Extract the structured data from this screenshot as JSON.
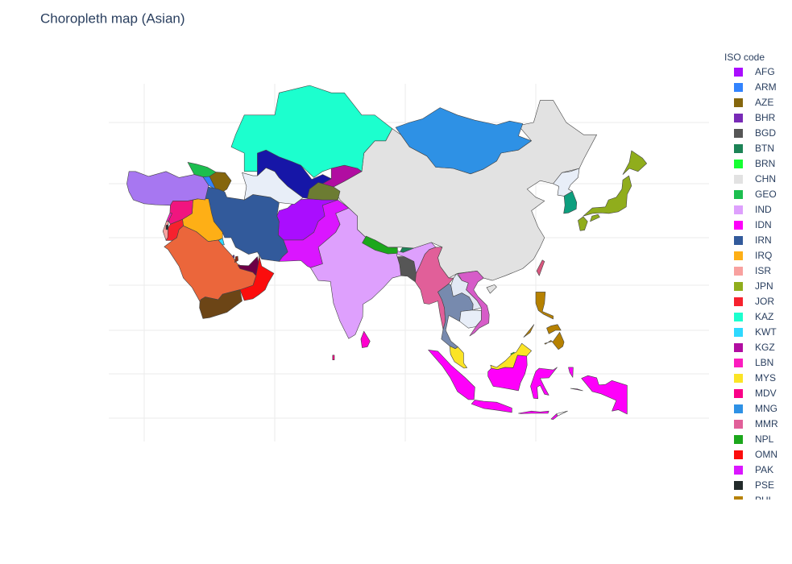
{
  "title": "Choropleth map (Asian)",
  "legend": {
    "title": "ISO code",
    "entries": [
      {
        "name": "AFG",
        "color": "#AA0DFE"
      },
      {
        "name": "ARM",
        "color": "#3283FE"
      },
      {
        "name": "AZE",
        "color": "#85660D"
      },
      {
        "name": "BHR",
        "color": "#782AB6"
      },
      {
        "name": "BGD",
        "color": "#565656"
      },
      {
        "name": "BTN",
        "color": "#1C8356"
      },
      {
        "name": "BRN",
        "color": "#16FF32"
      },
      {
        "name": "CHN",
        "color": "#E2E2E2"
      },
      {
        "name": "GEO",
        "color": "#1CBE4F"
      },
      {
        "name": "IND",
        "color": "#DEA0FD"
      },
      {
        "name": "IDN",
        "color": "#FE00FA"
      },
      {
        "name": "IRN",
        "color": "#325A9B"
      },
      {
        "name": "IRQ",
        "color": "#FEAF16"
      },
      {
        "name": "ISR",
        "color": "#F8A19F"
      },
      {
        "name": "JPN",
        "color": "#90AD1C"
      },
      {
        "name": "JOR",
        "color": "#F6222E"
      },
      {
        "name": "KAZ",
        "color": "#1CFFCE"
      },
      {
        "name": "KWT",
        "color": "#2ED9FF"
      },
      {
        "name": "KGZ",
        "color": "#B10DA1"
      },
      {
        "name": "LBN",
        "color": "#FC1CBF"
      },
      {
        "name": "MYS",
        "color": "#FBE426"
      },
      {
        "name": "MDV",
        "color": "#FA0087"
      },
      {
        "name": "MNG",
        "color": "#2E91E5"
      },
      {
        "name": "MMR",
        "color": "#E15F99"
      },
      {
        "name": "NPL",
        "color": "#1CA71C"
      },
      {
        "name": "OMN",
        "color": "#FB0D0D"
      },
      {
        "name": "PAK",
        "color": "#DA16FF"
      },
      {
        "name": "PSE",
        "color": "#222A2A"
      },
      {
        "name": "PHL",
        "color": "#B68100"
      }
    ]
  }
}
